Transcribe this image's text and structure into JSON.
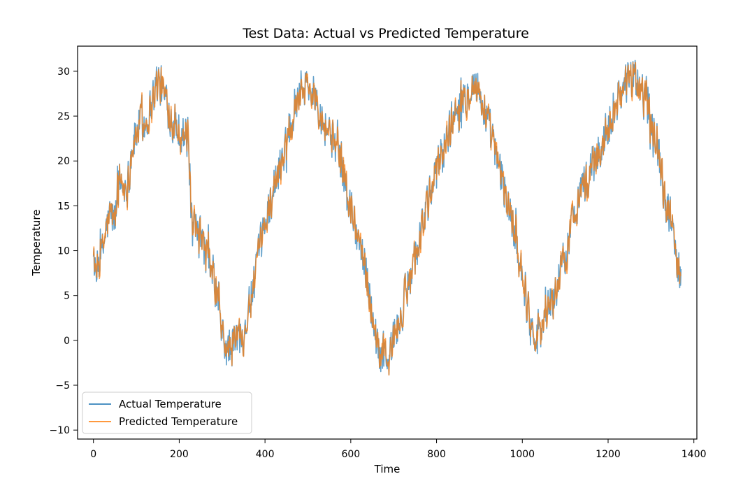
{
  "chart_data": {
    "type": "line",
    "title": "Test Data: Actual vs Predicted Temperature",
    "xlabel": "Time",
    "ylabel": "Temperature",
    "xlim": [
      -37,
      1407
    ],
    "ylim": [
      -11,
      32.8
    ],
    "xticks": [
      0,
      200,
      400,
      600,
      800,
      1000,
      1200,
      1400
    ],
    "yticks": [
      -10,
      -5,
      0,
      5,
      10,
      15,
      20,
      25,
      30
    ],
    "legend_position": "lower left",
    "grid": false,
    "series": [
      {
        "name": "Actual Temperature",
        "color": "#1f77b4",
        "key_points": [
          [
            0,
            11.2
          ],
          [
            5,
            5.5
          ],
          [
            10,
            8.5
          ],
          [
            20,
            9.5
          ],
          [
            30,
            12.5
          ],
          [
            40,
            14.0
          ],
          [
            50,
            13.5
          ],
          [
            60,
            18.0
          ],
          [
            70,
            17.0
          ],
          [
            80,
            17.5
          ],
          [
            90,
            21.5
          ],
          [
            100,
            23.0
          ],
          [
            110,
            24.5
          ],
          [
            120,
            24.0
          ],
          [
            130,
            25.5
          ],
          [
            140,
            27.5
          ],
          [
            150,
            29.0
          ],
          [
            160,
            28.0
          ],
          [
            170,
            26.5
          ],
          [
            180,
            25.0
          ],
          [
            190,
            24.0
          ],
          [
            200,
            23.5
          ],
          [
            210,
            23.0
          ],
          [
            220,
            22.5
          ],
          [
            225,
            18.0
          ],
          [
            230,
            12.0
          ],
          [
            240,
            12.0
          ],
          [
            250,
            11.5
          ],
          [
            260,
            10.0
          ],
          [
            270,
            8.5
          ],
          [
            280,
            7.0
          ],
          [
            290,
            4.5
          ],
          [
            300,
            0.5
          ],
          [
            310,
            -1.0
          ],
          [
            320,
            -1.0
          ],
          [
            330,
            0.0
          ],
          [
            340,
            0.5
          ],
          [
            350,
            1.0
          ],
          [
            360,
            3.0
          ],
          [
            370,
            5.0
          ],
          [
            380,
            8.0
          ],
          [
            390,
            10.5
          ],
          [
            400,
            13.0
          ],
          [
            410,
            15.0
          ],
          [
            420,
            17.0
          ],
          [
            430,
            18.5
          ],
          [
            440,
            20.5
          ],
          [
            450,
            22.5
          ],
          [
            460,
            24.5
          ],
          [
            470,
            26.5
          ],
          [
            480,
            28.0
          ],
          [
            490,
            28.5
          ],
          [
            500,
            28.5
          ],
          [
            510,
            27.5
          ],
          [
            520,
            27.5
          ],
          [
            530,
            25.5
          ],
          [
            540,
            24.0
          ],
          [
            550,
            23.5
          ],
          [
            560,
            22.0
          ],
          [
            570,
            21.0
          ],
          [
            580,
            19.5
          ],
          [
            590,
            16.5
          ],
          [
            600,
            14.5
          ],
          [
            610,
            13.0
          ],
          [
            620,
            11.0
          ],
          [
            630,
            9.0
          ],
          [
            640,
            6.5
          ],
          [
            650,
            3.0
          ],
          [
            660,
            0.0
          ],
          [
            670,
            -1.5
          ],
          [
            680,
            -1.5
          ],
          [
            690,
            -2.0
          ],
          [
            700,
            0.5
          ],
          [
            710,
            1.5
          ],
          [
            720,
            3.0
          ],
          [
            730,
            5.5
          ],
          [
            740,
            8.0
          ],
          [
            750,
            9.5
          ],
          [
            760,
            11.5
          ],
          [
            770,
            13.5
          ],
          [
            780,
            15.0
          ],
          [
            790,
            17.0
          ],
          [
            800,
            19.0
          ],
          [
            810,
            20.5
          ],
          [
            820,
            22.0
          ],
          [
            830,
            23.5
          ],
          [
            840,
            25.0
          ],
          [
            850,
            26.0
          ],
          [
            860,
            26.5
          ],
          [
            870,
            27.5
          ],
          [
            880,
            28.5
          ],
          [
            890,
            28.5
          ],
          [
            900,
            27.5
          ],
          [
            910,
            26.0
          ],
          [
            920,
            24.0
          ],
          [
            930,
            22.5
          ],
          [
            940,
            20.0
          ],
          [
            950,
            18.5
          ],
          [
            960,
            16.5
          ],
          [
            970,
            14.5
          ],
          [
            980,
            12.5
          ],
          [
            990,
            10.0
          ],
          [
            1000,
            7.5
          ],
          [
            1010,
            4.5
          ],
          [
            1020,
            1.5
          ],
          [
            1030,
            1.0
          ],
          [
            1040,
            1.5
          ],
          [
            1050,
            2.0
          ],
          [
            1060,
            3.5
          ],
          [
            1070,
            4.5
          ],
          [
            1080,
            5.5
          ],
          [
            1090,
            7.5
          ],
          [
            1100,
            9.5
          ],
          [
            1110,
            11.5
          ],
          [
            1120,
            14.0
          ],
          [
            1130,
            16.0
          ],
          [
            1140,
            17.5
          ],
          [
            1150,
            17.5
          ],
          [
            1160,
            19.0
          ],
          [
            1170,
            20.0
          ],
          [
            1180,
            21.0
          ],
          [
            1190,
            22.5
          ],
          [
            1200,
            24.0
          ],
          [
            1210,
            25.5
          ],
          [
            1220,
            26.5
          ],
          [
            1230,
            28.0
          ],
          [
            1240,
            28.5
          ],
          [
            1250,
            29.0
          ],
          [
            1260,
            29.0
          ],
          [
            1270,
            28.5
          ],
          [
            1280,
            27.5
          ],
          [
            1290,
            27.5
          ],
          [
            1300,
            25.5
          ],
          [
            1310,
            23.5
          ],
          [
            1320,
            20.5
          ],
          [
            1330,
            16.0
          ],
          [
            1340,
            14.5
          ],
          [
            1350,
            12.5
          ],
          [
            1360,
            9.0
          ],
          [
            1370,
            8.0
          ]
        ]
      },
      {
        "name": "Predicted Temperature",
        "color": "#ff7f0e",
        "key_points": [
          [
            0,
            10.5
          ],
          [
            5,
            5.0
          ],
          [
            10,
            8.0
          ],
          [
            20,
            9.5
          ],
          [
            30,
            12.5
          ],
          [
            40,
            14.0
          ],
          [
            50,
            13.5
          ],
          [
            60,
            18.0
          ],
          [
            70,
            17.0
          ],
          [
            80,
            17.5
          ],
          [
            90,
            21.5
          ],
          [
            100,
            23.0
          ],
          [
            110,
            24.5
          ],
          [
            120,
            24.0
          ],
          [
            130,
            25.5
          ],
          [
            140,
            27.5
          ],
          [
            150,
            29.0
          ],
          [
            160,
            28.0
          ],
          [
            170,
            26.5
          ],
          [
            180,
            25.0
          ],
          [
            190,
            24.0
          ],
          [
            200,
            23.5
          ],
          [
            210,
            23.0
          ],
          [
            220,
            22.5
          ],
          [
            225,
            18.0
          ],
          [
            230,
            12.0
          ],
          [
            240,
            12.0
          ],
          [
            250,
            11.5
          ],
          [
            260,
            10.0
          ],
          [
            270,
            8.5
          ],
          [
            280,
            7.0
          ],
          [
            290,
            4.5
          ],
          [
            300,
            0.5
          ],
          [
            310,
            -1.0
          ],
          [
            320,
            -1.0
          ],
          [
            330,
            0.0
          ],
          [
            340,
            0.5
          ],
          [
            350,
            1.0
          ],
          [
            360,
            3.0
          ],
          [
            370,
            5.0
          ],
          [
            380,
            8.0
          ],
          [
            390,
            10.5
          ],
          [
            400,
            13.0
          ],
          [
            410,
            15.0
          ],
          [
            420,
            17.0
          ],
          [
            430,
            18.5
          ],
          [
            440,
            20.5
          ],
          [
            450,
            22.5
          ],
          [
            460,
            24.5
          ],
          [
            470,
            26.5
          ],
          [
            480,
            28.0
          ],
          [
            490,
            28.5
          ],
          [
            500,
            28.5
          ],
          [
            510,
            27.5
          ],
          [
            520,
            27.5
          ],
          [
            530,
            25.5
          ],
          [
            540,
            24.0
          ],
          [
            550,
            23.5
          ],
          [
            560,
            22.0
          ],
          [
            570,
            21.0
          ],
          [
            580,
            19.5
          ],
          [
            590,
            16.5
          ],
          [
            600,
            14.5
          ],
          [
            610,
            13.0
          ],
          [
            620,
            11.0
          ],
          [
            630,
            9.0
          ],
          [
            640,
            6.5
          ],
          [
            650,
            3.0
          ],
          [
            660,
            0.0
          ],
          [
            670,
            -1.5
          ],
          [
            680,
            -1.5
          ],
          [
            690,
            -2.0
          ],
          [
            700,
            0.5
          ],
          [
            710,
            1.5
          ],
          [
            720,
            3.0
          ],
          [
            730,
            5.5
          ],
          [
            740,
            8.0
          ],
          [
            750,
            9.5
          ],
          [
            760,
            11.5
          ],
          [
            770,
            13.5
          ],
          [
            780,
            15.0
          ],
          [
            790,
            17.0
          ],
          [
            800,
            19.0
          ],
          [
            810,
            20.5
          ],
          [
            820,
            22.0
          ],
          [
            830,
            23.5
          ],
          [
            840,
            25.0
          ],
          [
            850,
            26.0
          ],
          [
            860,
            26.5
          ],
          [
            870,
            27.5
          ],
          [
            880,
            28.5
          ],
          [
            890,
            28.5
          ],
          [
            900,
            27.5
          ],
          [
            910,
            26.0
          ],
          [
            920,
            24.0
          ],
          [
            930,
            22.5
          ],
          [
            940,
            20.0
          ],
          [
            950,
            18.5
          ],
          [
            960,
            16.5
          ],
          [
            970,
            14.5
          ],
          [
            980,
            12.5
          ],
          [
            990,
            10.0
          ],
          [
            1000,
            7.5
          ],
          [
            1010,
            4.5
          ],
          [
            1020,
            1.5
          ],
          [
            1030,
            1.0
          ],
          [
            1040,
            1.5
          ],
          [
            1050,
            2.0
          ],
          [
            1060,
            3.5
          ],
          [
            1070,
            4.5
          ],
          [
            1080,
            5.5
          ],
          [
            1090,
            7.5
          ],
          [
            1100,
            9.5
          ],
          [
            1110,
            11.5
          ],
          [
            1120,
            14.0
          ],
          [
            1130,
            16.0
          ],
          [
            1140,
            17.5
          ],
          [
            1150,
            17.5
          ],
          [
            1160,
            19.0
          ],
          [
            1170,
            20.0
          ],
          [
            1180,
            21.0
          ],
          [
            1190,
            22.5
          ],
          [
            1200,
            24.0
          ],
          [
            1210,
            25.5
          ],
          [
            1220,
            26.5
          ],
          [
            1230,
            28.0
          ],
          [
            1240,
            28.5
          ],
          [
            1250,
            29.0
          ],
          [
            1260,
            29.0
          ],
          [
            1270,
            28.5
          ],
          [
            1280,
            27.5
          ],
          [
            1290,
            27.5
          ],
          [
            1300,
            25.5
          ],
          [
            1310,
            23.5
          ],
          [
            1320,
            20.5
          ],
          [
            1330,
            16.0
          ],
          [
            1340,
            14.5
          ],
          [
            1350,
            12.5
          ],
          [
            1360,
            9.0
          ],
          [
            1370,
            8.0
          ]
        ]
      }
    ]
  }
}
